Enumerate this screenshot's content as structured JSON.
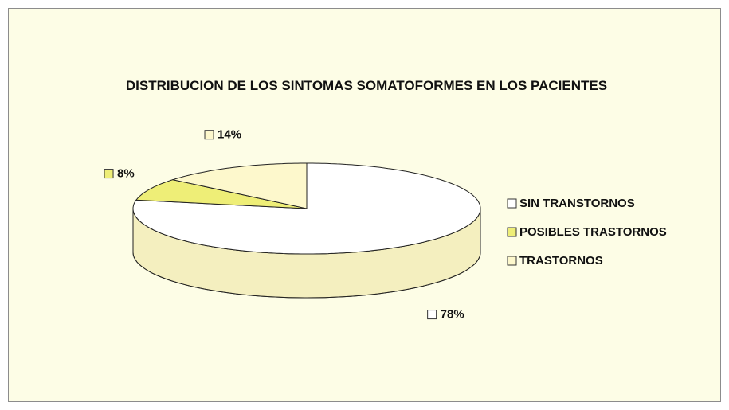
{
  "chart_data": {
    "type": "pie",
    "title": "DISTRIBUCION DE LOS SINTOMAS SOMATOFORMES EN LOS PACIENTES",
    "categories": [
      "SIN TRANSTORNOS",
      "POSIBLES TRASTORNOS",
      "TRASTORNOS"
    ],
    "values": [
      78,
      8,
      14
    ],
    "value_labels": [
      "78%",
      "8%",
      "14%"
    ],
    "colors": [
      "#ffffff",
      "#eeee77",
      "#fdf8cc"
    ],
    "legend": "right"
  }
}
